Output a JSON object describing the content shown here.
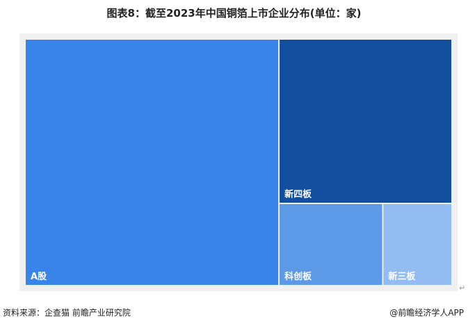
{
  "title": "图表8：截至2023年中国铜箔上市企业分布(单位：家)",
  "source": "资料来源：企查猫 前瞻产业研究院",
  "brand": "@前瞻经济学人APP",
  "chart_data": {
    "type": "treemap",
    "title": "图表8：截至2023年中国铜箔上市企业分布(单位：家)",
    "items": [
      {
        "name": "A股",
        "value": 22,
        "color": "#3884e8"
      },
      {
        "name": "新四板",
        "value": 10,
        "color": "#134d9e"
      },
      {
        "name": "科创板",
        "value": 3,
        "color": "#5c99e6"
      },
      {
        "name": "新三板",
        "value": 2,
        "color": "#93bcf2"
      }
    ]
  }
}
